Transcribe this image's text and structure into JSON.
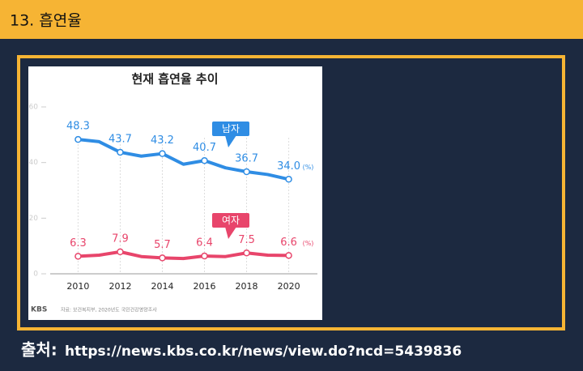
{
  "header": {
    "title": "13. 흡연율"
  },
  "source": {
    "label": "출처:",
    "url": "https://news.kbs.co.kr/news/view.do?ncd=5439836"
  },
  "chart_data": {
    "type": "line",
    "title": "현재 흡연율 추이",
    "x": [
      2010,
      2011,
      2012,
      2013,
      2014,
      2015,
      2016,
      2017,
      2018,
      2019,
      2020
    ],
    "series": [
      {
        "name": "남자",
        "color": "#2f8de4",
        "values": [
          48.3,
          47.5,
          43.7,
          42.3,
          43.2,
          39.4,
          40.7,
          38.1,
          36.7,
          35.7,
          34.0
        ],
        "value_labels": [
          "48.3",
          null,
          "43.7",
          null,
          "43.2",
          null,
          "40.7",
          null,
          "36.7",
          null,
          "34.0"
        ]
      },
      {
        "name": "여자",
        "color": "#e8456b",
        "values": [
          6.3,
          6.7,
          7.9,
          6.2,
          5.7,
          5.5,
          6.4,
          6.2,
          7.5,
          6.7,
          6.6
        ],
        "value_labels": [
          "6.3",
          null,
          "7.9",
          null,
          "5.7",
          null,
          "6.4",
          null,
          "7.5",
          null,
          "6.6"
        ]
      }
    ],
    "unit_label": "(%)",
    "xlim": [
      2008.6,
      2021.4
    ],
    "xticks": [
      2010,
      2012,
      2014,
      2016,
      2018,
      2020
    ],
    "ylim": [
      0,
      60
    ],
    "yticks": [
      0,
      20,
      40,
      60
    ],
    "logo": "KBS",
    "note": "자료: 보건복지부, 2020년도 국민건강영양조사"
  }
}
